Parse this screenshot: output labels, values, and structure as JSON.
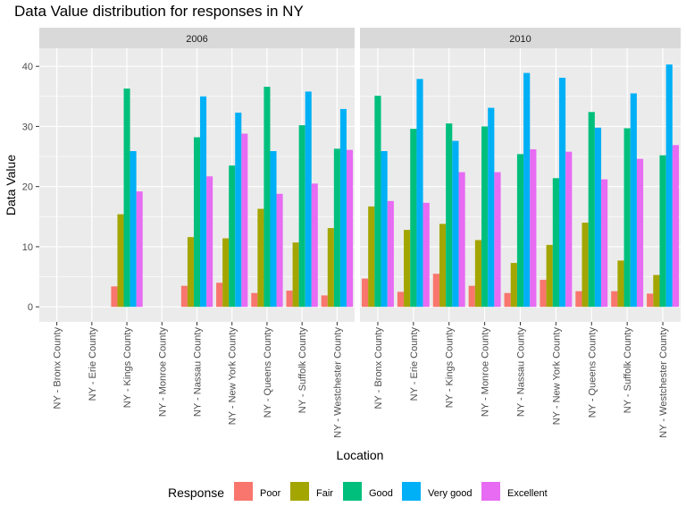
{
  "chart_data": {
    "type": "bar",
    "title": "Data Value distribution for responses in NY",
    "xlabel": "Location",
    "ylabel": "Data Value",
    "ylim": [
      -2.5,
      43
    ],
    "yticks": [
      0,
      10,
      20,
      30,
      40
    ],
    "grid": true,
    "legend_position": "bottom",
    "legend_title": "Response",
    "series": [
      {
        "name": "Poor",
        "color": "#F8766D"
      },
      {
        "name": "Fair",
        "color": "#A3A500"
      },
      {
        "name": "Good",
        "color": "#00BF7D"
      },
      {
        "name": "Very good",
        "color": "#00B0F6"
      },
      {
        "name": "Excellent",
        "color": "#E76BF3"
      }
    ],
    "panels": [
      {
        "label": "2006",
        "categories": [
          "NY - Bronx County",
          "NY - Erie County",
          "NY - Kings County",
          "NY - Monroe County",
          "NY - Nassau County",
          "NY - New York County",
          "NY - Queens County",
          "NY - Suffolk County",
          "NY - Westchester County"
        ],
        "values": [
          [
            null,
            null,
            null,
            null,
            null
          ],
          [
            null,
            null,
            null,
            null,
            null
          ],
          [
            3.4,
            15.4,
            36.3,
            25.9,
            19.2
          ],
          [
            null,
            null,
            null,
            null,
            null
          ],
          [
            3.5,
            11.6,
            28.2,
            35.0,
            21.7
          ],
          [
            4.0,
            11.4,
            23.5,
            32.3,
            28.8
          ],
          [
            2.3,
            16.3,
            36.6,
            25.9,
            18.8
          ],
          [
            2.7,
            10.7,
            30.2,
            35.8,
            20.5
          ],
          [
            1.9,
            13.1,
            26.3,
            32.9,
            26.1
          ]
        ]
      },
      {
        "label": "2010",
        "categories": [
          "NY - Bronx County",
          "NY - Erie County",
          "NY - Kings County",
          "NY - Monroe County",
          "NY - Nassau County",
          "NY - New York County",
          "NY - Queens County",
          "NY - Suffolk County",
          "NY - Westchester County"
        ],
        "values": [
          [
            4.7,
            16.7,
            35.1,
            25.9,
            17.6
          ],
          [
            2.5,
            12.8,
            29.6,
            37.9,
            17.3
          ],
          [
            5.5,
            13.8,
            30.5,
            27.6,
            22.4
          ],
          [
            3.5,
            11.1,
            30.0,
            33.1,
            22.4
          ],
          [
            2.3,
            7.3,
            25.4,
            38.9,
            26.2
          ],
          [
            4.5,
            10.3,
            21.4,
            38.1,
            25.8
          ],
          [
            2.6,
            14.0,
            32.4,
            29.8,
            21.2
          ],
          [
            2.6,
            7.7,
            29.7,
            35.5,
            24.6
          ],
          [
            2.2,
            5.3,
            25.2,
            40.3,
            26.9
          ]
        ]
      }
    ]
  }
}
